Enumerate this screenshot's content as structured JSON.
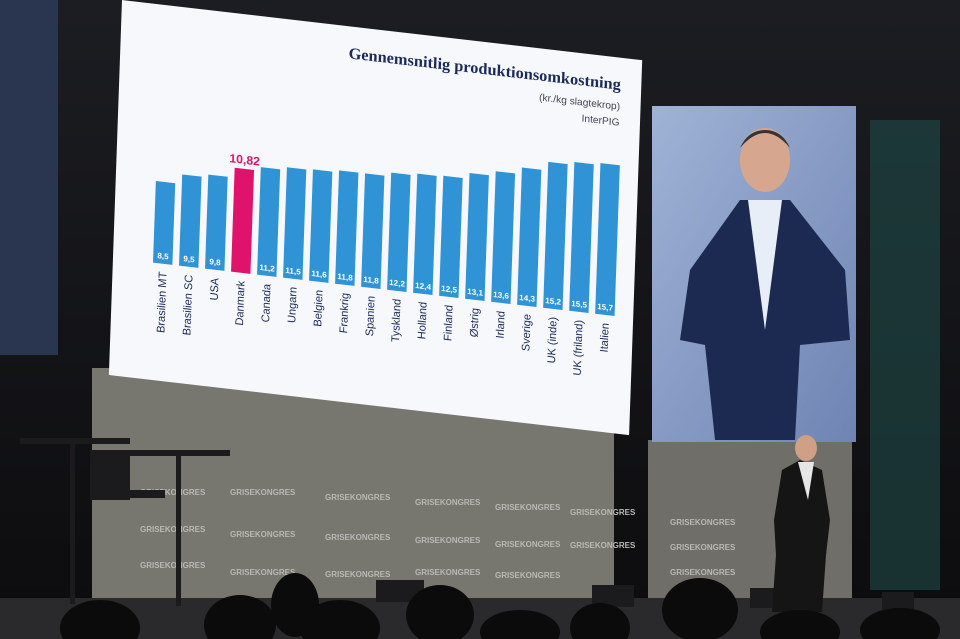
{
  "chart_data": {
    "type": "bar",
    "title": "Gennemsnitlig produktionsomkostning",
    "subtitle": "(kr./kg slagtekrop)",
    "source": "InterPIG",
    "categories": [
      "Brasilien MT",
      "Brasilien SC",
      "USA",
      "Danmark",
      "Canada",
      "Ungarn",
      "Belgien",
      "Frankrig",
      "Spanien",
      "Tyskland",
      "Holland",
      "Finland",
      "Østrig",
      "Irland",
      "Sverige",
      "UK (inde)",
      "UK (friland)",
      "Italien"
    ],
    "values": [
      8.5,
      9.5,
      9.8,
      10.82,
      11.2,
      11.5,
      11.6,
      11.8,
      11.8,
      12.2,
      12.4,
      12.5,
      13.1,
      13.6,
      14.3,
      15.2,
      15.5,
      15.7
    ],
    "value_labels": [
      "8,5",
      "9,5",
      "9,8",
      "10,82",
      "11,2",
      "11,5",
      "11,6",
      "11,8",
      "11,8",
      "12,2",
      "12,4",
      "12,5",
      "13,1",
      "13,6",
      "14,3",
      "15,2",
      "15,5",
      "15,7"
    ],
    "colors": [
      "#2f93d6",
      "#2f93d6",
      "#2f93d6",
      "#e0136c",
      "#2f93d6",
      "#2f93d6",
      "#2f93d6",
      "#2f93d6",
      "#2f93d6",
      "#2f93d6",
      "#2f93d6",
      "#2f93d6",
      "#2f93d6",
      "#2f93d6",
      "#2f93d6",
      "#2f93d6",
      "#2f93d6",
      "#2f93d6"
    ]
  },
  "backdrop": {
    "logo_text": "GRISEKONGRES"
  }
}
